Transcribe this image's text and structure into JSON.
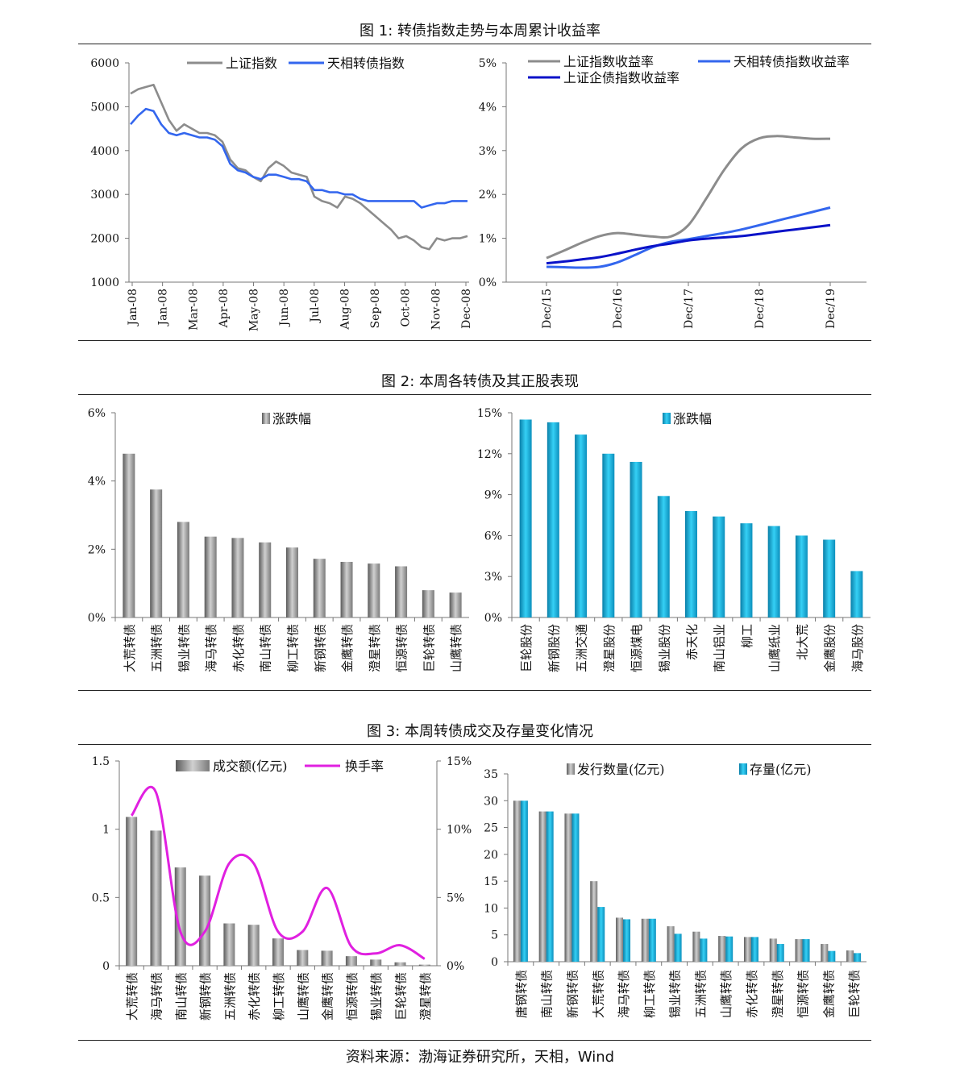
{
  "figures": {
    "fig1_title": "图 1: 转债指数走势与本周累计收益率",
    "fig2_title": "图 2: 本周各转债及其正股表现",
    "fig3_title": "图 3: 本周转债成交及存量变化情况"
  },
  "source": "资料来源：渤海证券研究所，天相，Wind",
  "colors": {
    "gray": "#8c8c8c",
    "blue": "#3366ee",
    "navy": "#0a12c8",
    "teal": "#11aad6",
    "magenta": "#e020e0"
  },
  "chart_data": [
    {
      "id": "c1a",
      "type": "line",
      "ylim": [
        1000,
        6000
      ],
      "yticks": [
        "1000",
        "2000",
        "3000",
        "4000",
        "5000",
        "6000"
      ],
      "xticks": [
        "Jan-08",
        "Jan-08",
        "Mar-08",
        "Apr-08",
        "May-08",
        "Jun-08",
        "Jul-08",
        "Aug-08",
        "Sep-08",
        "Oct-08",
        "Nov-08",
        "Dec-08"
      ],
      "series": [
        {
          "name": "上证指数",
          "color": "#8c8c8c",
          "values": [
            5300,
            5400,
            5450,
            5500,
            5100,
            4700,
            4450,
            4600,
            4500,
            4400,
            4400,
            4350,
            4200,
            3800,
            3600,
            3550,
            3400,
            3300,
            3600,
            3750,
            3650,
            3500,
            3450,
            3400,
            2950,
            2850,
            2800,
            2700,
            2950,
            2900,
            2800,
            2650,
            2500,
            2350,
            2200,
            2000,
            2050,
            1950,
            1800,
            1750,
            2000,
            1950,
            2000,
            2000,
            2050
          ]
        },
        {
          "name": "天相转债指数",
          "color": "#3366ee",
          "values": [
            4600,
            4800,
            4950,
            4900,
            4600,
            4400,
            4350,
            4400,
            4350,
            4300,
            4300,
            4250,
            4100,
            3700,
            3550,
            3500,
            3400,
            3350,
            3450,
            3450,
            3400,
            3350,
            3350,
            3300,
            3100,
            3100,
            3050,
            3050,
            3000,
            3000,
            2900,
            2850,
            2850,
            2850,
            2850,
            2850,
            2850,
            2850,
            2700,
            2750,
            2800,
            2800,
            2850,
            2850,
            2850
          ]
        }
      ]
    },
    {
      "id": "c1b",
      "type": "line",
      "ylim": [
        0,
        5
      ],
      "yticks": [
        "0%",
        "1%",
        "2%",
        "3%",
        "4%",
        "5%"
      ],
      "xticks": [
        "Dec/15",
        "Dec/16",
        "Dec/17",
        "Dec/18",
        "Dec/19"
      ],
      "series": [
        {
          "name": "上证指数收益率",
          "color": "#8c8c8c",
          "values": [
            0.55,
            0.72,
            0.9,
            1.05,
            1.12,
            1.08,
            1.04,
            1.04,
            1.3,
            1.9,
            2.55,
            3.05,
            3.28,
            3.33,
            3.3,
            3.27,
            3.27
          ]
        },
        {
          "name": "天相转债指数收益率",
          "color": "#3366ee",
          "values": [
            0.35,
            0.34,
            0.33,
            0.35,
            0.45,
            0.62,
            0.8,
            0.92,
            0.98,
            1.05,
            1.12,
            1.2,
            1.3,
            1.4,
            1.5,
            1.6,
            1.7
          ]
        },
        {
          "name": "上证企债指数收益率",
          "color": "#0a12c8",
          "values": [
            0.43,
            0.47,
            0.52,
            0.57,
            0.65,
            0.74,
            0.82,
            0.88,
            0.95,
            0.99,
            1.02,
            1.05,
            1.1,
            1.15,
            1.2,
            1.25,
            1.3
          ]
        }
      ]
    },
    {
      "id": "c2a",
      "type": "bar",
      "ylim": [
        0,
        6
      ],
      "yticks": [
        "0%",
        "2%",
        "4%",
        "6%"
      ],
      "series": [
        {
          "name": "涨跌幅",
          "color": "#8c8c8c",
          "values": [
            4.8,
            3.75,
            2.8,
            2.37,
            2.33,
            2.2,
            2.05,
            1.72,
            1.63,
            1.58,
            1.5,
            0.8,
            0.73
          ]
        }
      ],
      "categories": [
        "大荒转债",
        "五洲转债",
        "锡业转债",
        "海马转债",
        "赤化转债",
        "南山转债",
        "柳工转债",
        "新钢转债",
        "金鹰转债",
        "澄星转债",
        "恒源转债",
        "巨轮转债",
        "山鹰转债"
      ]
    },
    {
      "id": "c2b",
      "type": "bar",
      "ylim": [
        0,
        15
      ],
      "yticks": [
        "0%",
        "3%",
        "6%",
        "9%",
        "12%",
        "15%"
      ],
      "series": [
        {
          "name": "涨跌幅",
          "color": "#11aad6",
          "values": [
            14.5,
            14.3,
            13.4,
            12.0,
            11.4,
            8.9,
            7.8,
            7.4,
            6.9,
            6.7,
            6.0,
            5.7,
            3.4
          ]
        }
      ],
      "categories": [
        "巨轮股份",
        "新钢股份",
        "五洲交通",
        "澄星股份",
        "恒源煤电",
        "锡业股份",
        "赤天化",
        "南山铝业",
        "柳工",
        "山鹰纸业",
        "北大荒",
        "金鹰股份",
        "海马股份"
      ]
    },
    {
      "id": "c3a",
      "type": "bar",
      "ylim": [
        0,
        1.5
      ],
      "yticks": [
        "0",
        "0.5",
        "1",
        "1.5"
      ],
      "y2lim": [
        0,
        15
      ],
      "y2ticks": [
        "0%",
        "5%",
        "10%",
        "15%"
      ],
      "categories": [
        "大荒转债",
        "海马转债",
        "南山转债",
        "新钢转债",
        "五洲转债",
        "赤化转债",
        "柳工转债",
        "山鹰转债",
        "金鹰转债",
        "恒源转债",
        "锡业转债",
        "巨轮转债",
        "澄星转债"
      ],
      "series": [
        {
          "name": "成交额(亿元)",
          "color": "#8c8c8c",
          "values": [
            1.09,
            0.99,
            0.72,
            0.66,
            0.31,
            0.3,
            0.2,
            0.115,
            0.11,
            0.07,
            0.045,
            0.025,
            0.008
          ]
        },
        {
          "name": "换手率",
          "color": "#e020e0",
          "axis": "right",
          "values": [
            11.0,
            12.7,
            2.5,
            2.5,
            7.5,
            7.5,
            2.5,
            2.5,
            5.7,
            1.4,
            0.9,
            1.5,
            0.5
          ]
        }
      ]
    },
    {
      "id": "c3b",
      "type": "bar",
      "ylim": [
        0,
        35
      ],
      "yticks": [
        "0",
        "5",
        "10",
        "15",
        "20",
        "25",
        "30",
        "35"
      ],
      "categories": [
        "唐钢转债",
        "南山转债",
        "新钢转债",
        "大荒转债",
        "海马转债",
        "柳工转债",
        "锡业转债",
        "五洲转债",
        "山鹰转债",
        "赤化转债",
        "澄星转债",
        "恒源转债",
        "金鹰转债",
        "巨轮转债"
      ],
      "series": [
        {
          "name": "发行数量(亿元)",
          "color": "#8c8c8c",
          "values": [
            30,
            28,
            27.6,
            15,
            8.2,
            8,
            6.6,
            5.6,
            4.8,
            4.6,
            4.3,
            4.2,
            3.3,
            2.1
          ]
        },
        {
          "name": "存量(亿元)",
          "color": "#11aad6",
          "values": [
            30,
            28,
            27.6,
            10.2,
            7.9,
            8,
            5.2,
            4.3,
            4.7,
            4.6,
            3.3,
            4.2,
            2.0,
            1.6
          ]
        }
      ]
    }
  ]
}
